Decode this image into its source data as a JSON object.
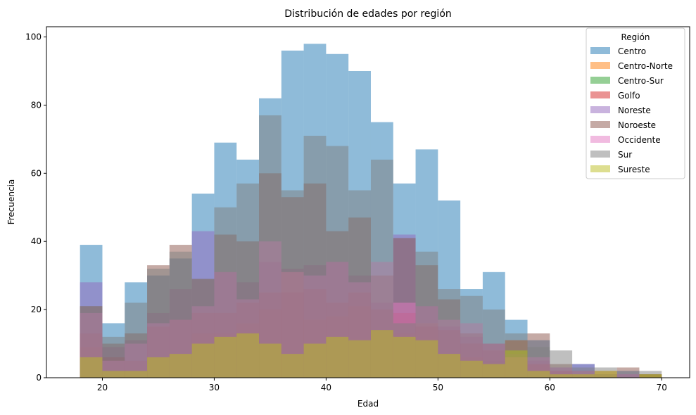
{
  "chart_data": {
    "type": "histogram",
    "title": "Distribución de edades por región",
    "xlabel": "Edad",
    "ylabel": "Frecuencia",
    "xlim": [
      15,
      72.5
    ],
    "ylim": [
      0,
      103
    ],
    "bin_start": 18,
    "bin_width": 2,
    "xticks": [
      20,
      30,
      40,
      50,
      60,
      70
    ],
    "yticks": [
      0,
      20,
      40,
      60,
      80,
      100
    ],
    "legend": {
      "title": "Región",
      "placement": "top-right"
    },
    "alpha": 0.5,
    "series": [
      {
        "name": "Centro",
        "color": "#1f77b4",
        "values": [
          39,
          16,
          28,
          30,
          35,
          54,
          69,
          64,
          82,
          96,
          98,
          95,
          90,
          75,
          57,
          67,
          52,
          26,
          31,
          17,
          11,
          3,
          4,
          1,
          2,
          1
        ]
      },
      {
        "name": "Centro-Norte",
        "color": "#ff7f0e",
        "values": [
          9,
          2,
          2,
          6,
          7,
          13,
          13,
          16,
          20,
          31,
          17,
          18,
          21,
          14,
          13,
          16,
          7,
          6,
          4,
          11,
          4,
          2,
          1,
          1,
          0,
          1
        ]
      },
      {
        "name": "Centro-Sur",
        "color": "#2ca02c",
        "values": [
          6,
          2,
          2,
          6,
          7,
          10,
          12,
          13,
          10,
          7,
          10,
          12,
          11,
          14,
          12,
          11,
          7,
          5,
          5,
          8,
          2,
          1,
          1,
          1,
          0,
          1
        ]
      },
      {
        "name": "Golfo",
        "color": "#d62728",
        "values": [
          13,
          6,
          5,
          15,
          17,
          19,
          19,
          22,
          25,
          25,
          26,
          22,
          25,
          20,
          19,
          15,
          14,
          10,
          8,
          6,
          4,
          2,
          1,
          2,
          0,
          1
        ]
      },
      {
        "name": "Noreste",
        "color": "#9467bd",
        "values": [
          28,
          9,
          11,
          19,
          26,
          43,
          31,
          28,
          34,
          32,
          33,
          34,
          30,
          22,
          42,
          21,
          15,
          12,
          10,
          7,
          5,
          2,
          4,
          0,
          1,
          0
        ]
      },
      {
        "name": "Noroeste",
        "color": "#8c564b",
        "values": [
          21,
          10,
          13,
          33,
          39,
          29,
          42,
          40,
          60,
          53,
          57,
          43,
          47,
          30,
          41,
          33,
          23,
          13,
          10,
          11,
          13,
          4,
          2,
          1,
          3,
          0
        ]
      },
      {
        "name": "Occidente",
        "color": "#e377c2",
        "values": [
          19,
          5,
          10,
          16,
          17,
          21,
          31,
          23,
          40,
          31,
          30,
          34,
          28,
          34,
          22,
          21,
          17,
          16,
          10,
          6,
          6,
          3,
          2,
          1,
          1,
          0
        ]
      },
      {
        "name": "Sur",
        "color": "#7f7f7f",
        "values": [
          21,
          12,
          22,
          32,
          37,
          29,
          50,
          57,
          77,
          55,
          71,
          68,
          55,
          64,
          16,
          37,
          26,
          24,
          20,
          13,
          9,
          8,
          3,
          3,
          1,
          2
        ]
      },
      {
        "name": "Sureste",
        "color": "#bcbd22",
        "values": [
          6,
          2,
          2,
          6,
          7,
          10,
          12,
          13,
          10,
          7,
          10,
          12,
          11,
          14,
          12,
          11,
          7,
          5,
          4,
          8,
          2,
          1,
          1,
          2,
          0,
          1
        ]
      }
    ]
  }
}
